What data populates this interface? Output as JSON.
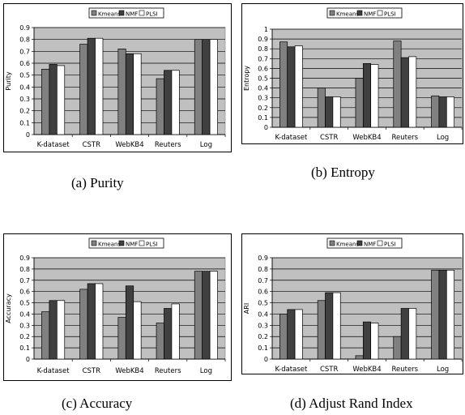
{
  "colors": {
    "Kmeans": "#808080",
    "NMF": "#404040",
    "PLSI": "#ffffff",
    "plot_bg": "#c0c0c0"
  },
  "captions": [
    "(a) Purity",
    "(b) Entropy",
    "(c) Accuracy",
    "(d) Adjust Rand Index"
  ],
  "chart_data": [
    {
      "type": "bar",
      "ylabel": "Purity",
      "categories": [
        "K-dataset",
        "CSTR",
        "WebKB4",
        "Reuters",
        "Log"
      ],
      "ylim": [
        0,
        0.9
      ],
      "yticks": [
        "0",
        "0.1",
        "0.2",
        "0.3",
        "0.4",
        "0.5",
        "0.6",
        "0.7",
        "0.8",
        "0.9"
      ],
      "grid": true,
      "legend": "top",
      "series": [
        {
          "name": "Kmeans",
          "values": [
            0.55,
            0.76,
            0.72,
            0.47,
            0.8
          ]
        },
        {
          "name": "NMF",
          "values": [
            0.59,
            0.81,
            0.68,
            0.54,
            0.8
          ]
        },
        {
          "name": "PLSI",
          "values": [
            0.58,
            0.81,
            0.68,
            0.54,
            0.8
          ]
        }
      ]
    },
    {
      "type": "bar",
      "ylabel": "Entropy",
      "categories": [
        "K-dataset",
        "CSTR",
        "WebKB4",
        "Reuters",
        "Log"
      ],
      "ylim": [
        0,
        1
      ],
      "yticks": [
        "0",
        "0.1",
        "0.2",
        "0.3",
        "0.4",
        "0.5",
        "0.6",
        "0.7",
        "0.8",
        "0.9",
        "1"
      ],
      "grid": true,
      "legend": "top",
      "series": [
        {
          "name": "Kmeans",
          "values": [
            0.87,
            0.4,
            0.5,
            0.88,
            0.32
          ]
        },
        {
          "name": "NMF",
          "values": [
            0.82,
            0.31,
            0.65,
            0.71,
            0.31
          ]
        },
        {
          "name": "PLSI",
          "values": [
            0.83,
            0.31,
            0.64,
            0.72,
            0.31
          ]
        }
      ]
    },
    {
      "type": "bar",
      "ylabel": "Accuracy",
      "categories": [
        "K-dataset",
        "CSTR",
        "WebKB4",
        "Reuters",
        "Log"
      ],
      "ylim": [
        0,
        0.9
      ],
      "yticks": [
        "0",
        "0.1",
        "0.2",
        "0.3",
        "0.4",
        "0.5",
        "0.6",
        "0.7",
        "0.8",
        "0.9"
      ],
      "grid": true,
      "legend": "top",
      "series": [
        {
          "name": "Kmeans",
          "values": [
            0.42,
            0.62,
            0.37,
            0.32,
            0.78
          ]
        },
        {
          "name": "NMF",
          "values": [
            0.52,
            0.67,
            0.65,
            0.45,
            0.78
          ]
        },
        {
          "name": "PLSI",
          "values": [
            0.52,
            0.67,
            0.51,
            0.49,
            0.78
          ]
        }
      ]
    },
    {
      "type": "bar",
      "ylabel": "ARI",
      "categories": [
        "K-dataset",
        "CSTR",
        "WebKB4",
        "Reuters",
        "Log"
      ],
      "ylim": [
        0,
        0.9
      ],
      "yticks": [
        "0",
        "0.1",
        "0.2",
        "0.3",
        "0.4",
        "0.5",
        "0.6",
        "0.7",
        "0.8",
        "0.9"
      ],
      "grid": true,
      "legend": "top",
      "series": [
        {
          "name": "Kmeans",
          "values": [
            0.4,
            0.52,
            0.03,
            0.2,
            0.79
          ]
        },
        {
          "name": "NMF",
          "values": [
            0.44,
            0.59,
            0.33,
            0.45,
            0.79
          ]
        },
        {
          "name": "PLSI",
          "values": [
            0.44,
            0.59,
            0.32,
            0.45,
            0.79
          ]
        }
      ]
    }
  ]
}
